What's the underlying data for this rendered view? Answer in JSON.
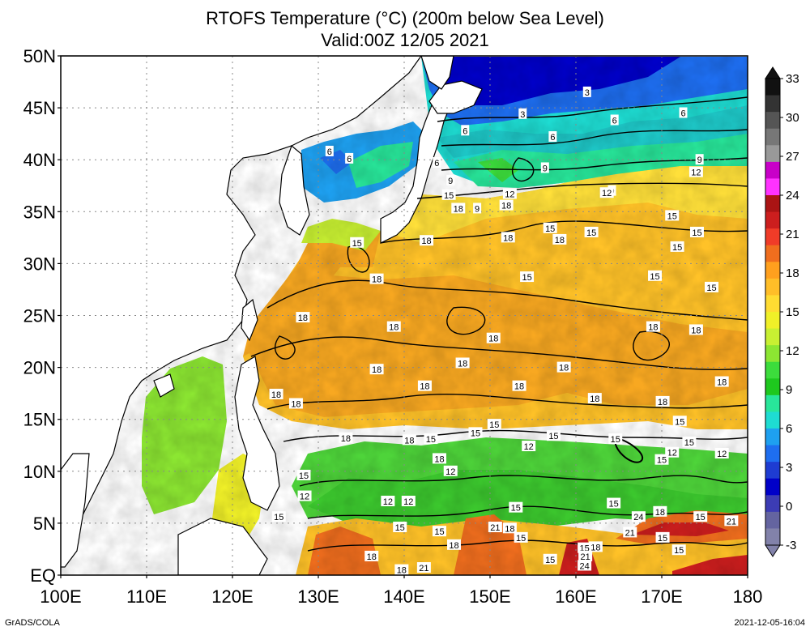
{
  "title_line1": "RTOFS Temperature (°C) (200m below Sea Level)",
  "title_line2": "Valid:00Z 12/05 2021",
  "credit": "GrADS/COLA",
  "timestamp": "2021-12-05-16:04",
  "lat_labels": [
    "50N",
    "45N",
    "40N",
    "35N",
    "30N",
    "25N",
    "20N",
    "15N",
    "10N",
    "5N",
    "EQ"
  ],
  "lon_labels": [
    "100E",
    "110E",
    "120E",
    "130E",
    "140E",
    "150E",
    "160E",
    "170E",
    "180"
  ],
  "colorbar": {
    "labels": [
      "33",
      "30",
      "27",
      "24",
      "21",
      "18",
      "15",
      "12",
      "9",
      "6",
      "3",
      "0",
      "-3"
    ],
    "colors": [
      "#111111",
      "#333333",
      "#555555",
      "#777777",
      "#999999",
      "#c800c8",
      "#ff32ff",
      "#aa1414",
      "#cc1e1e",
      "#f03c28",
      "#f06e1e",
      "#ffa01e",
      "#ffbe28",
      "#ffdc32",
      "#f0f028",
      "#c8f032",
      "#8ce632",
      "#3cdc3c",
      "#1ec81e",
      "#28e69a",
      "#1edcd2",
      "#1ea0f0",
      "#1e6ef0",
      "#1e3cd2",
      "#0000c8",
      "#3c3cb4",
      "#6464a0",
      "#8282aa"
    ]
  },
  "contour_labels": [
    {
      "text": "3",
      "lat": 46.5,
      "lon": 161.3
    },
    {
      "text": "3",
      "lat": 44.4,
      "lon": 153.8
    },
    {
      "text": "6",
      "lat": 42.8,
      "lon": 147.1
    },
    {
      "text": "6",
      "lat": 42.2,
      "lon": 157.3
    },
    {
      "text": "6",
      "lat": 44.5,
      "lon": 172.5
    },
    {
      "text": "6",
      "lat": 43.8,
      "lon": 164.5
    },
    {
      "text": "6",
      "lat": 40.8,
      "lon": 131.3
    },
    {
      "text": "6",
      "lat": 40.1,
      "lon": 133.6
    },
    {
      "text": "6",
      "lat": 39.7,
      "lon": 143.8
    },
    {
      "text": "9",
      "lat": 39.2,
      "lon": 156.4
    },
    {
      "text": "9",
      "lat": 38.0,
      "lon": 145.4
    },
    {
      "text": "9",
      "lat": 37.0,
      "lon": 164.2
    },
    {
      "text": "9",
      "lat": 40.0,
      "lon": 174.4
    },
    {
      "text": "12",
      "lat": 38.8,
      "lon": 174.0
    },
    {
      "text": "12",
      "lat": 36.8,
      "lon": 163.6
    },
    {
      "text": "12",
      "lat": 36.7,
      "lon": 152.3
    },
    {
      "text": "15",
      "lat": 36.6,
      "lon": 145.2
    },
    {
      "text": "18",
      "lat": 35.3,
      "lon": 146.3
    },
    {
      "text": "18",
      "lat": 35.6,
      "lon": 151.9
    },
    {
      "text": "9",
      "lat": 35.3,
      "lon": 148.5
    },
    {
      "text": "15",
      "lat": 33.4,
      "lon": 157.0
    },
    {
      "text": "15",
      "lat": 33.0,
      "lon": 161.8
    },
    {
      "text": "15",
      "lat": 34.6,
      "lon": 171.2
    },
    {
      "text": "15",
      "lat": 33.0,
      "lon": 174.1
    },
    {
      "text": "15",
      "lat": 31.6,
      "lon": 171.8
    },
    {
      "text": "18",
      "lat": 32.5,
      "lon": 152.1
    },
    {
      "text": "18",
      "lat": 32.3,
      "lon": 158.1
    },
    {
      "text": "18",
      "lat": 32.2,
      "lon": 142.6
    },
    {
      "text": "15",
      "lat": 32.0,
      "lon": 134.5
    },
    {
      "text": "18",
      "lat": 28.5,
      "lon": 136.8
    },
    {
      "text": "15",
      "lat": 28.7,
      "lon": 154.3
    },
    {
      "text": "15",
      "lat": 28.8,
      "lon": 169.2
    },
    {
      "text": "15",
      "lat": 27.7,
      "lon": 175.8
    },
    {
      "text": "18",
      "lat": 24.8,
      "lon": 128.2
    },
    {
      "text": "18",
      "lat": 23.9,
      "lon": 138.8
    },
    {
      "text": "18",
      "lat": 23.9,
      "lon": 169.0
    },
    {
      "text": "18",
      "lat": 23.6,
      "lon": 174.0
    },
    {
      "text": "18",
      "lat": 22.8,
      "lon": 150.4
    },
    {
      "text": "18",
      "lat": 20.4,
      "lon": 146.8
    },
    {
      "text": "18",
      "lat": 20.0,
      "lon": 158.6
    },
    {
      "text": "18",
      "lat": 19.8,
      "lon": 136.8
    },
    {
      "text": "18",
      "lat": 18.6,
      "lon": 177.0
    },
    {
      "text": "18",
      "lat": 18.2,
      "lon": 142.4
    },
    {
      "text": "18",
      "lat": 18.2,
      "lon": 153.4
    },
    {
      "text": "18",
      "lat": 17.4,
      "lon": 125.1
    },
    {
      "text": "18",
      "lat": 17.0,
      "lon": 162.2
    },
    {
      "text": "18",
      "lat": 16.7,
      "lon": 170.1
    },
    {
      "text": "18",
      "lat": 16.5,
      "lon": 127.4
    },
    {
      "text": "15",
      "lat": 14.8,
      "lon": 172.1
    },
    {
      "text": "15",
      "lat": 14.5,
      "lon": 150.5
    },
    {
      "text": "15",
      "lat": 13.7,
      "lon": 148.3
    },
    {
      "text": "18",
      "lat": 13.2,
      "lon": 133.2
    },
    {
      "text": "15",
      "lat": 13.1,
      "lon": 143.1
    },
    {
      "text": "18",
      "lat": 13.0,
      "lon": 140.6
    },
    {
      "text": "15",
      "lat": 13.4,
      "lon": 157.4
    },
    {
      "text": "15",
      "lat": 13.1,
      "lon": 164.6
    },
    {
      "text": "12",
      "lat": 12.4,
      "lon": 154.5
    },
    {
      "text": "18",
      "lat": 11.2,
      "lon": 144.1
    },
    {
      "text": "12",
      "lat": 11.8,
      "lon": 171.2
    },
    {
      "text": "15",
      "lat": 12.8,
      "lon": 173.2
    },
    {
      "text": "12",
      "lat": 11.7,
      "lon": 177.0
    },
    {
      "text": "12",
      "lat": 10.0,
      "lon": 145.4
    },
    {
      "text": "15",
      "lat": 11.1,
      "lon": 170.0
    },
    {
      "text": "15",
      "lat": 9.6,
      "lon": 128.3
    },
    {
      "text": "12",
      "lat": 7.6,
      "lon": 128.4
    },
    {
      "text": "12",
      "lat": 7.1,
      "lon": 140.5
    },
    {
      "text": "12",
      "lat": 7.1,
      "lon": 138.1
    },
    {
      "text": "15",
      "lat": 6.9,
      "lon": 164.4
    },
    {
      "text": "15",
      "lat": 6.5,
      "lon": 153.0
    },
    {
      "text": "15",
      "lat": 5.6,
      "lon": 125.4
    },
    {
      "text": "15",
      "lat": 5.6,
      "lon": 174.5
    },
    {
      "text": "24",
      "lat": 5.6,
      "lon": 167.3
    },
    {
      "text": "18",
      "lat": 6.1,
      "lon": 169.8
    },
    {
      "text": "21",
      "lat": 5.2,
      "lon": 178.1
    },
    {
      "text": "21",
      "lat": 4.6,
      "lon": 150.6
    },
    {
      "text": "18",
      "lat": 4.5,
      "lon": 152.3
    },
    {
      "text": "15",
      "lat": 4.6,
      "lon": 139.5
    },
    {
      "text": "15",
      "lat": 4.2,
      "lon": 144.1
    },
    {
      "text": "15",
      "lat": 3.6,
      "lon": 153.6
    },
    {
      "text": "21",
      "lat": 4.1,
      "lon": 166.3
    },
    {
      "text": "15",
      "lat": 3.6,
      "lon": 170.1
    },
    {
      "text": "18",
      "lat": 2.9,
      "lon": 145.8
    },
    {
      "text": "18",
      "lat": 2.7,
      "lon": 162.3
    },
    {
      "text": "15",
      "lat": 2.6,
      "lon": 161.0
    },
    {
      "text": "15",
      "lat": 2.4,
      "lon": 172.0
    },
    {
      "text": "18",
      "lat": 1.8,
      "lon": 136.2
    },
    {
      "text": "21",
      "lat": 1.8,
      "lon": 161.1
    },
    {
      "text": "15",
      "lat": 1.5,
      "lon": 157.0
    },
    {
      "text": "24",
      "lat": 0.9,
      "lon": 161.0
    },
    {
      "text": "21",
      "lat": 0.7,
      "lon": 142.3
    },
    {
      "text": "18",
      "lat": 0.5,
      "lon": 139.7
    }
  ]
}
